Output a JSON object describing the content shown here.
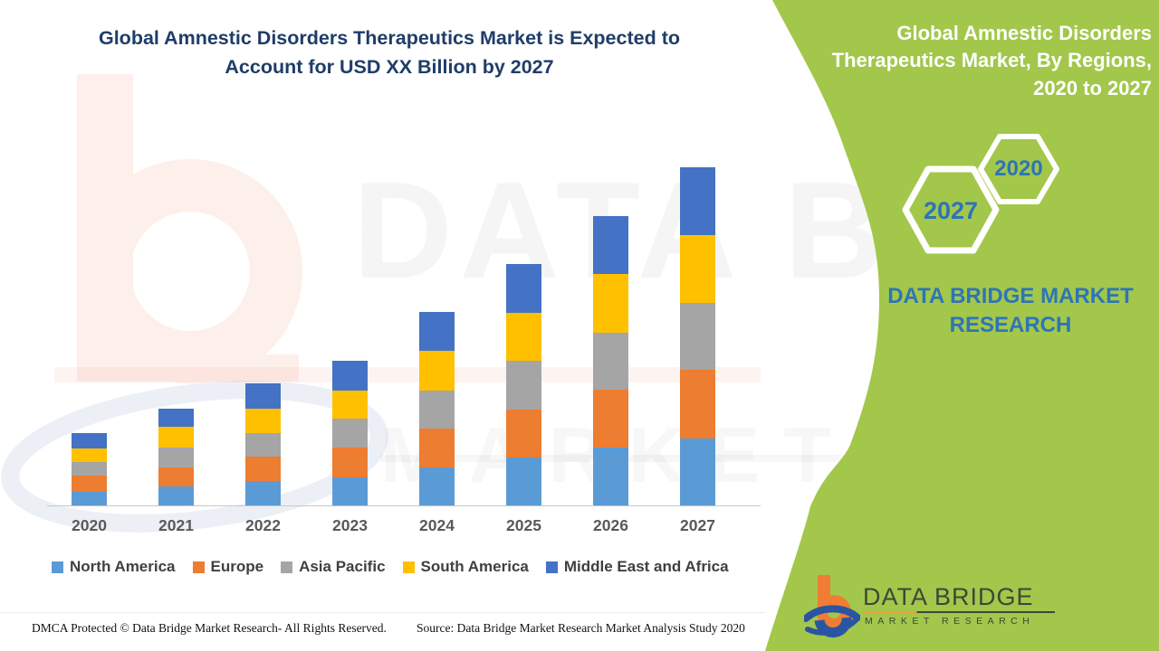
{
  "chart_title": "Global Amnestic Disorders Therapeutics Market is Expected to Account for USD XX Billion by 2027",
  "right_panel": {
    "title": "Global Amnestic Disorders Therapeutics Market, By Regions, 2020 to 2027",
    "hexagons": [
      {
        "label": "2027"
      },
      {
        "label": "2020"
      }
    ],
    "brand_text": "DATA BRIDGE MARKET RESEARCH",
    "logo": {
      "name": "DATA BRIDGE",
      "sub": "MARKET RESEARCH"
    }
  },
  "watermark": {
    "line1": "DATA BRIDGE",
    "line2": "MARKET RESEARCH"
  },
  "footer": {
    "dmca": "DMCA Protected © Data Bridge Market Research- All Rights Reserved.",
    "source": "Source: Data Bridge Market Research Market Analysis Study 2020"
  },
  "colors": {
    "panel_green": "#A2C74B",
    "title_navy": "#1F3D68",
    "hex_year_blue": "#2E74B5",
    "brand_blue": "#2E75B6",
    "logo_orange": "#F07D33",
    "logo_swoosh_blue": "#2B55A2"
  },
  "chart_data": {
    "type": "bar",
    "stacked": true,
    "title": "Global Amnestic Disorders Therapeutics Market is Expected to Account for USD XX Billion by 2027",
    "categories": [
      "2020",
      "2021",
      "2022",
      "2023",
      "2024",
      "2025",
      "2026",
      "2027"
    ],
    "series": [
      {
        "name": "North America",
        "color": "#5B9BD5",
        "values": [
          15,
          21,
          27,
          31,
          42,
          53,
          64,
          74
        ]
      },
      {
        "name": "Europe",
        "color": "#ED7D31",
        "values": [
          18,
          21,
          27,
          33,
          43,
          53,
          64,
          76
        ]
      },
      {
        "name": "Asia Pacific",
        "color": "#A5A5A5",
        "values": [
          15,
          22,
          26,
          32,
          42,
          54,
          63,
          74
        ]
      },
      {
        "name": "South America",
        "color": "#FFC000",
        "values": [
          15,
          23,
          27,
          31,
          44,
          53,
          65,
          75
        ]
      },
      {
        "name": "Middle East and Africa",
        "color": "#4472C4",
        "values": [
          17,
          20,
          28,
          33,
          43,
          54,
          64,
          75
        ]
      }
    ],
    "units": "USD Billion (exact values not labeled on chart, shown as XX; values above are relative magnitudes)",
    "xlabel": "",
    "ylabel": "",
    "value_axis_visible": false,
    "grid": false,
    "legend_position": "bottom"
  }
}
